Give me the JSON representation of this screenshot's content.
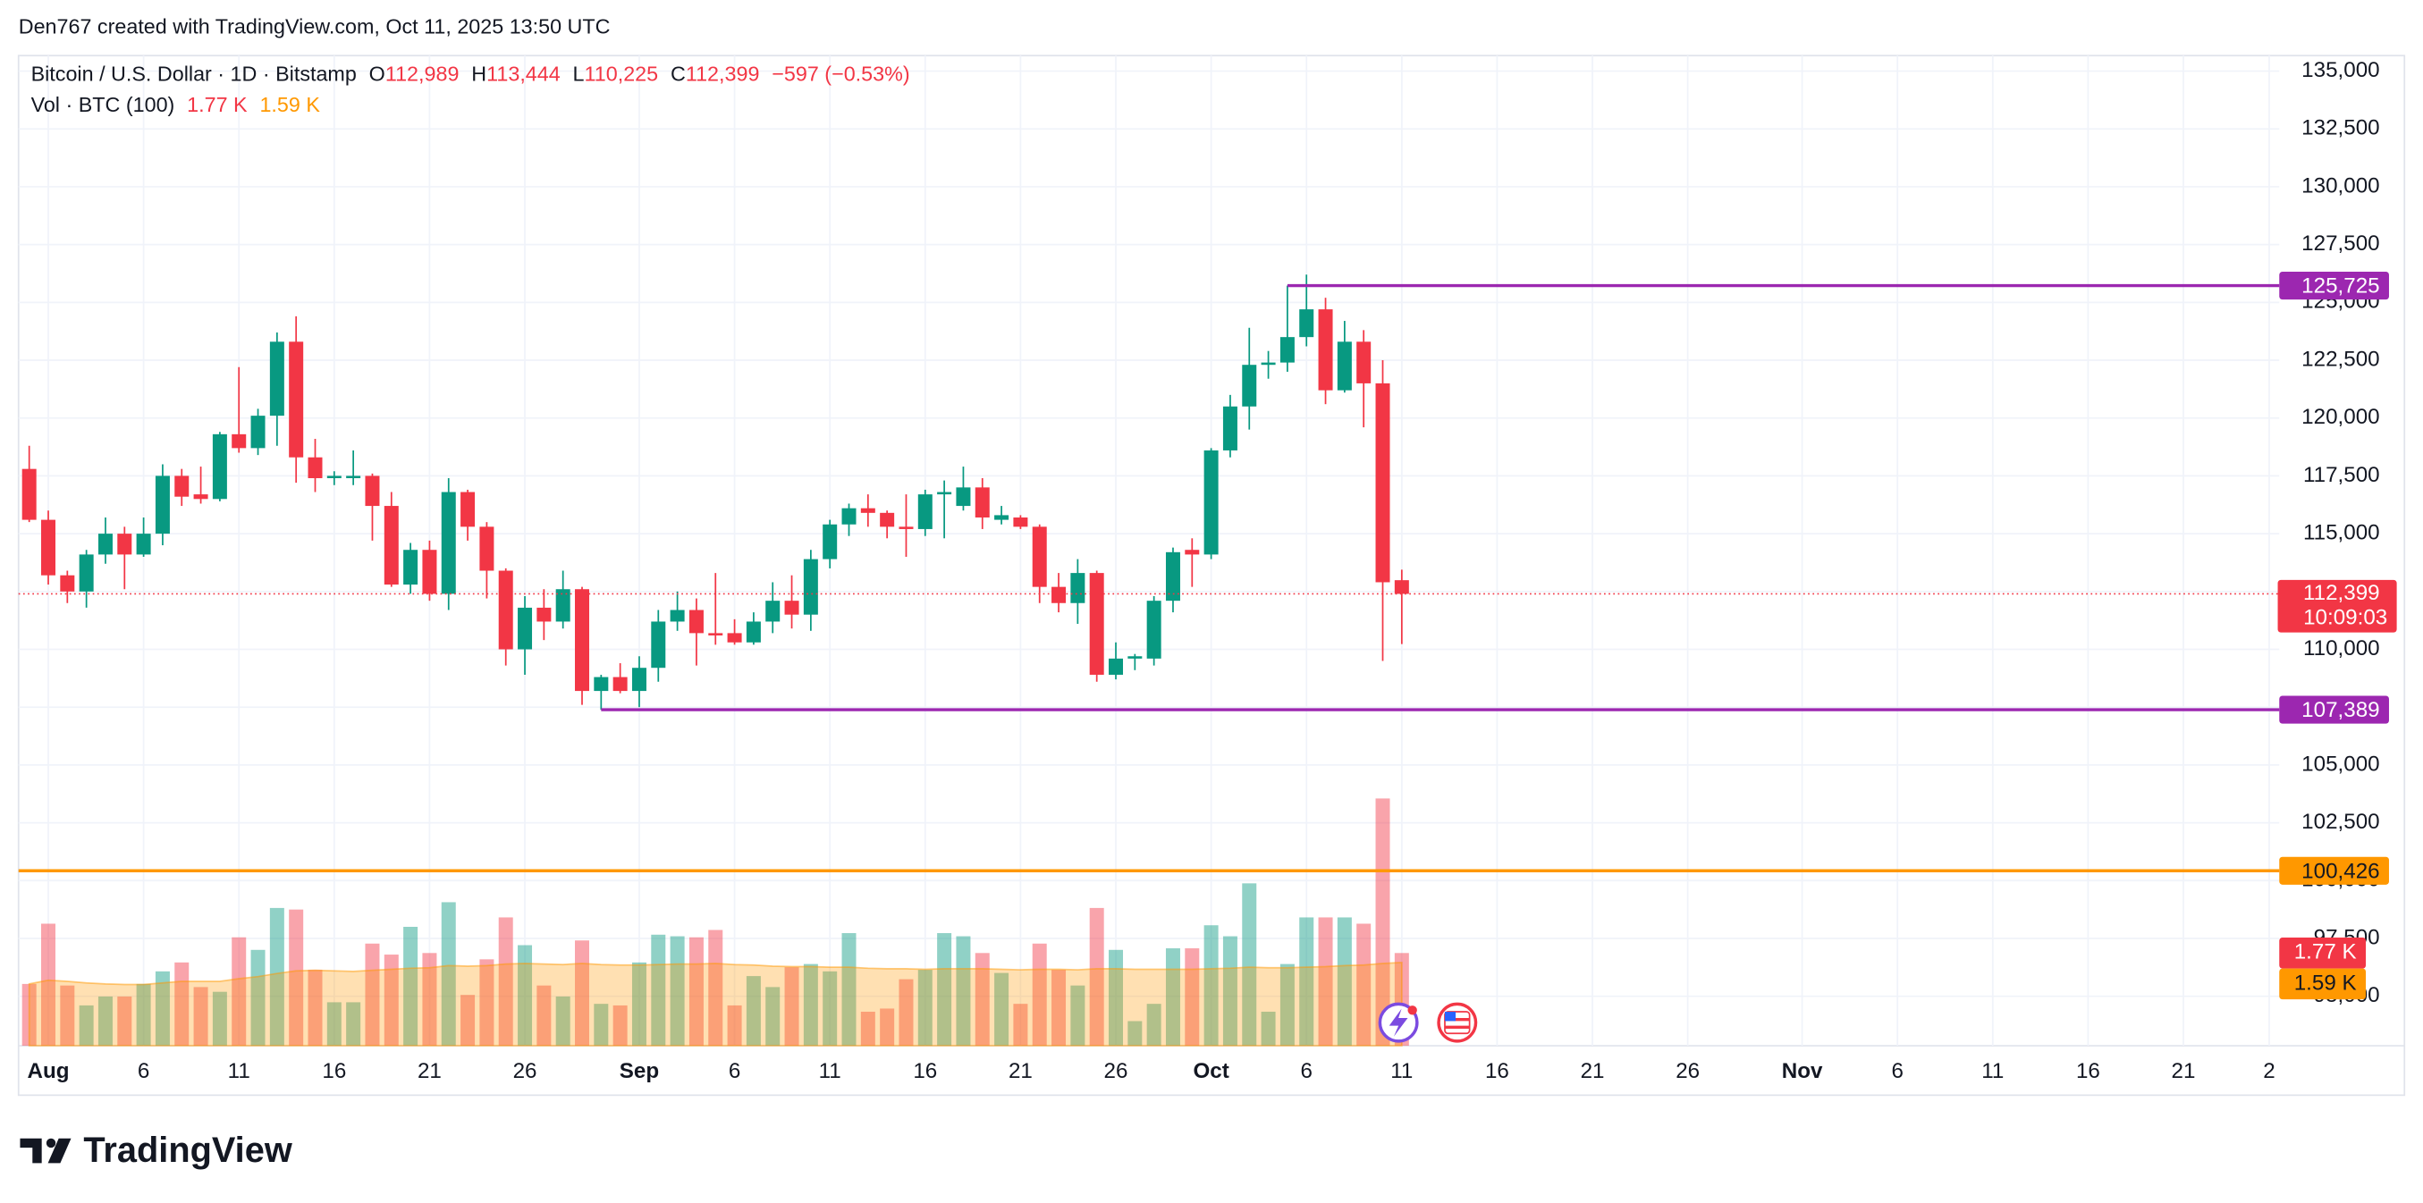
{
  "header": "Den767 created with TradingView.com, Oct 11, 2025 13:50 UTC",
  "legend": {
    "symbol": "Bitcoin / U.S. Dollar · 1D · Bitstamp",
    "o": "O",
    "open": "112,989",
    "h": "H",
    "high": "113,444",
    "l": "L",
    "low": "110,225",
    "c": "C",
    "close": "112,399",
    "change": "−597 (−0.53%)",
    "volume_title": "Vol · BTC (100)"
  },
  "logo": "TradingView",
  "chart_data": {
    "type": "candlestick",
    "up_color": "#089981",
    "down_color": "#f23645",
    "volume_ma_color": "#ff9800",
    "xlim": [
      -1.56,
      117.03
    ],
    "ylim": [
      92860,
      135670
    ],
    "volume_ylim": [
      0,
      18900
    ],
    "grid": true,
    "xticks": [
      {
        "value": 0,
        "label": "Aug"
      },
      {
        "value": 5,
        "label": "6"
      },
      {
        "value": 10,
        "label": "11"
      },
      {
        "value": 15,
        "label": "16"
      },
      {
        "value": 20,
        "label": "21"
      },
      {
        "value": 25,
        "label": "26"
      },
      {
        "value": 31,
        "label": "Sep"
      },
      {
        "value": 36,
        "label": "6"
      },
      {
        "value": 41,
        "label": "11"
      },
      {
        "value": 46,
        "label": "16"
      },
      {
        "value": 51,
        "label": "21"
      },
      {
        "value": 56,
        "label": "26"
      },
      {
        "value": 61,
        "label": "Oct"
      },
      {
        "value": 66,
        "label": "6"
      },
      {
        "value": 71,
        "label": "11"
      },
      {
        "value": 76,
        "label": "16"
      },
      {
        "value": 81,
        "label": "21"
      },
      {
        "value": 86,
        "label": "26"
      },
      {
        "value": 92,
        "label": "Nov"
      },
      {
        "value": 97,
        "label": "6"
      },
      {
        "value": 102,
        "label": "11"
      },
      {
        "value": 107,
        "label": "16"
      },
      {
        "value": 112,
        "label": "21"
      },
      {
        "value": 116.5,
        "label": "2"
      }
    ],
    "yticks": [
      {
        "value": 95000,
        "label": "95,000"
      },
      {
        "value": 97500,
        "label": "97,500"
      },
      {
        "value": 100000,
        "label": "100,000"
      },
      {
        "value": 102500,
        "label": "102,500"
      },
      {
        "value": 105000,
        "label": "105,000"
      },
      {
        "value": 107500,
        "label": "107,500"
      },
      {
        "value": 110000,
        "label": "110,000"
      },
      {
        "value": 112500,
        "label": "112,500"
      },
      {
        "value": 115000,
        "label": "115,000"
      },
      {
        "value": 117500,
        "label": "117,500"
      },
      {
        "value": 120000,
        "label": "120,000"
      },
      {
        "value": 122500,
        "label": "122,500"
      },
      {
        "value": 125000,
        "label": "125,000"
      },
      {
        "value": 127500,
        "label": "127,500"
      },
      {
        "value": 130000,
        "label": "130,000"
      },
      {
        "value": 132500,
        "label": "132,500"
      },
      {
        "value": 135000,
        "label": "135,000"
      }
    ],
    "x": [
      -1,
      0,
      1,
      2,
      3,
      4,
      5,
      6,
      7,
      8,
      9,
      10,
      11,
      12,
      13,
      14,
      15,
      16,
      17,
      18,
      19,
      20,
      21,
      22,
      23,
      24,
      25,
      26,
      27,
      28,
      29,
      30,
      31,
      32,
      33,
      34,
      35,
      36,
      37,
      38,
      39,
      40,
      41,
      42,
      43,
      44,
      45,
      46,
      47,
      48,
      49,
      50,
      51,
      52,
      53,
      54,
      55,
      56,
      57,
      58,
      59,
      60,
      61,
      62,
      63,
      64,
      65,
      66,
      67,
      68,
      69,
      70,
      71
    ],
    "open": [
      117800,
      115600,
      113200,
      112500,
      114100,
      115000,
      114100,
      115000,
      117500,
      116700,
      116500,
      119300,
      118700,
      120100,
      123300,
      118300,
      117400,
      117400,
      117500,
      116200,
      112800,
      114300,
      112400,
      116800,
      115300,
      113400,
      110000,
      111800,
      111200,
      112600,
      108200,
      108800,
      108200,
      109200,
      111200,
      111700,
      110700,
      110700,
      110300,
      111200,
      112100,
      111500,
      113900,
      115400,
      116100,
      115900,
      115300,
      115200,
      116700,
      116200,
      117000,
      115600,
      115700,
      115300,
      112700,
      112000,
      113300,
      108900,
      109600,
      109600,
      112100,
      114300,
      114100,
      118600,
      120500,
      122300,
      122400,
      123500,
      124700,
      121200,
      123300,
      121500,
      112989
    ],
    "high": [
      118800,
      116000,
      113400,
      114300,
      115700,
      115300,
      115700,
      118000,
      117800,
      117900,
      119400,
      122200,
      120400,
      123700,
      124400,
      119100,
      117700,
      118600,
      117600,
      116800,
      114600,
      114700,
      117400,
      116900,
      115500,
      113500,
      112300,
      112600,
      113400,
      112700,
      108900,
      109400,
      109700,
      111700,
      112500,
      112200,
      113300,
      111300,
      111600,
      112900,
      113200,
      114300,
      115600,
      116300,
      116700,
      116000,
      116700,
      116900,
      117300,
      117900,
      117400,
      116200,
      115800,
      115400,
      113300,
      113900,
      113400,
      110300,
      109800,
      112300,
      114400,
      114800,
      118700,
      121000,
      123900,
      122900,
      125725,
      126200,
      125200,
      124200,
      123800,
      122500,
      113444
    ],
    "low": [
      115500,
      112800,
      112000,
      111800,
      113700,
      112600,
      114000,
      114500,
      116200,
      116300,
      116400,
      118500,
      118400,
      118800,
      117200,
      116800,
      117100,
      117100,
      114700,
      112700,
      112400,
      112100,
      111700,
      114700,
      112200,
      109300,
      108900,
      110400,
      110900,
      107600,
      107389,
      108100,
      107500,
      108600,
      110800,
      109300,
      110200,
      110200,
      110200,
      110700,
      110900,
      110800,
      113500,
      114900,
      115300,
      114800,
      114000,
      114900,
      114800,
      116000,
      115200,
      115400,
      115200,
      112000,
      111600,
      111100,
      108600,
      108700,
      109100,
      109300,
      111600,
      112700,
      113900,
      118300,
      119500,
      121700,
      122000,
      123100,
      120600,
      121100,
      119600,
      109500,
      110225
    ],
    "close": [
      115600,
      113200,
      112500,
      114100,
      115000,
      114100,
      115000,
      117500,
      116600,
      116500,
      119300,
      118700,
      120100,
      123300,
      118300,
      117400,
      117500,
      117500,
      116200,
      112800,
      114300,
      112400,
      116800,
      115300,
      113400,
      110000,
      111800,
      111200,
      112600,
      108200,
      108800,
      108200,
      109200,
      111200,
      111700,
      110700,
      110600,
      110300,
      111200,
      112100,
      111500,
      113900,
      115400,
      116100,
      115900,
      115300,
      115200,
      116700,
      116800,
      117000,
      115700,
      115800,
      115300,
      112700,
      112000,
      113300,
      108900,
      109600,
      109700,
      112100,
      114200,
      114100,
      118600,
      120500,
      122300,
      122400,
      123500,
      124700,
      121200,
      123300,
      121500,
      112900,
      112399
    ],
    "volume": [
      1180,
      2330,
      1150,
      770,
      940,
      940,
      1180,
      1420,
      1590,
      1120,
      1030,
      2070,
      1830,
      2630,
      2600,
      1450,
      830,
      830,
      1950,
      1740,
      2270,
      1770,
      2740,
      970,
      1650,
      2450,
      1920,
      1150,
      940,
      2010,
      800,
      770,
      1590,
      2120,
      2090,
      2070,
      2210,
      770,
      1330,
      1120,
      1500,
      1560,
      1420,
      2150,
      650,
      710,
      1270,
      1450,
      2150,
      2090,
      1770,
      1390,
      800,
      1950,
      1450,
      1150,
      2630,
      1830,
      470,
      800,
      1860,
      1860,
      2300,
      2090,
      3100,
      650,
      1560,
      2450,
      2450,
      2450,
      2330,
      4720,
      1770
    ],
    "volume_ma": [
      1180,
      1250,
      1230,
      1200,
      1180,
      1170,
      1170,
      1200,
      1230,
      1230,
      1230,
      1280,
      1320,
      1380,
      1430,
      1440,
      1430,
      1420,
      1440,
      1460,
      1480,
      1490,
      1530,
      1520,
      1530,
      1560,
      1570,
      1560,
      1550,
      1570,
      1550,
      1540,
      1540,
      1550,
      1560,
      1560,
      1570,
      1550,
      1540,
      1520,
      1510,
      1510,
      1500,
      1500,
      1480,
      1470,
      1470,
      1460,
      1470,
      1470,
      1470,
      1460,
      1450,
      1460,
      1460,
      1450,
      1470,
      1470,
      1460,
      1460,
      1460,
      1460,
      1470,
      1480,
      1500,
      1490,
      1490,
      1500,
      1510,
      1530,
      1540,
      1570,
      1590
    ],
    "volume_label": "1.77 K",
    "volume_ma_label": "1.59 K",
    "levels": [
      {
        "value": 125725,
        "label": "125,725",
        "from": 65,
        "color": "#9c27b0"
      },
      {
        "value": 107389,
        "label": "107,389",
        "from": 29,
        "color": "#9c27b0"
      },
      {
        "value": 100426,
        "label": "100,426",
        "from": -1.56,
        "color": "#ff9800"
      }
    ],
    "last_price": {
      "value": 112399,
      "label": "112,399",
      "countdown": "10:09:03",
      "color": "#f23645"
    }
  }
}
